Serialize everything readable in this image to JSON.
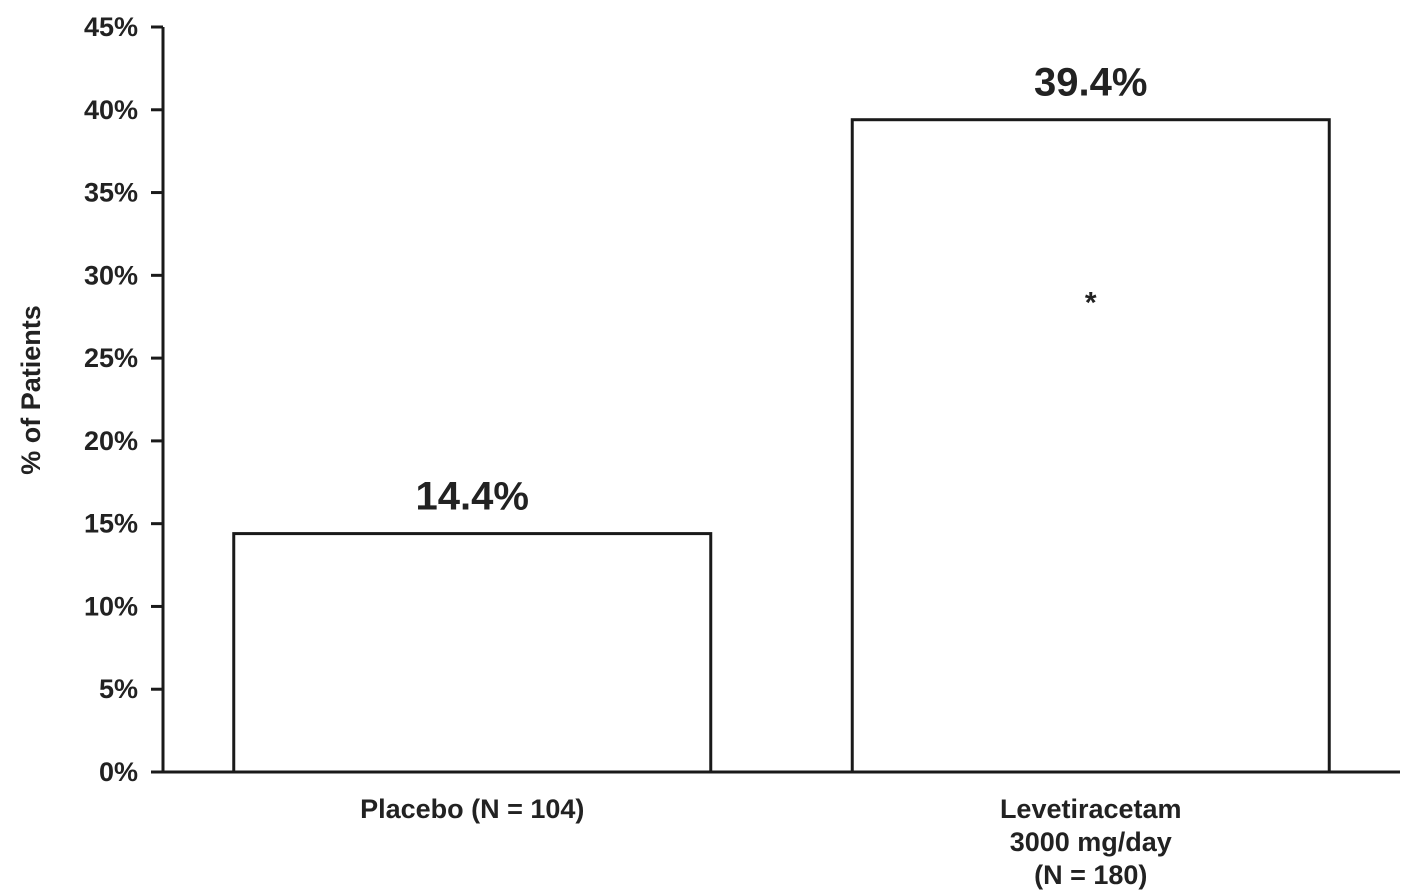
{
  "chart_data": {
    "type": "bar",
    "title": "",
    "xlabel": "",
    "ylabel": "% of Patients",
    "ylim": [
      0,
      45
    ],
    "y_ticks": [
      "0%",
      "5%",
      "10%",
      "15%",
      "20%",
      "25%",
      "30%",
      "35%",
      "40%",
      "45%"
    ],
    "categories": [
      [
        "Placebo (N = 104)"
      ],
      [
        "Levetiracetam",
        "3000 mg/day",
        "(N = 180)"
      ]
    ],
    "values": [
      14.4,
      39.4
    ],
    "value_labels": [
      "14.4%",
      "39.4%"
    ],
    "bar_marks": [
      "",
      "*"
    ],
    "grid": false,
    "legend": "none"
  },
  "colors": {
    "bar_fill": "#ffffff",
    "bar_stroke": "#1a1a1a",
    "text": "#222222"
  }
}
